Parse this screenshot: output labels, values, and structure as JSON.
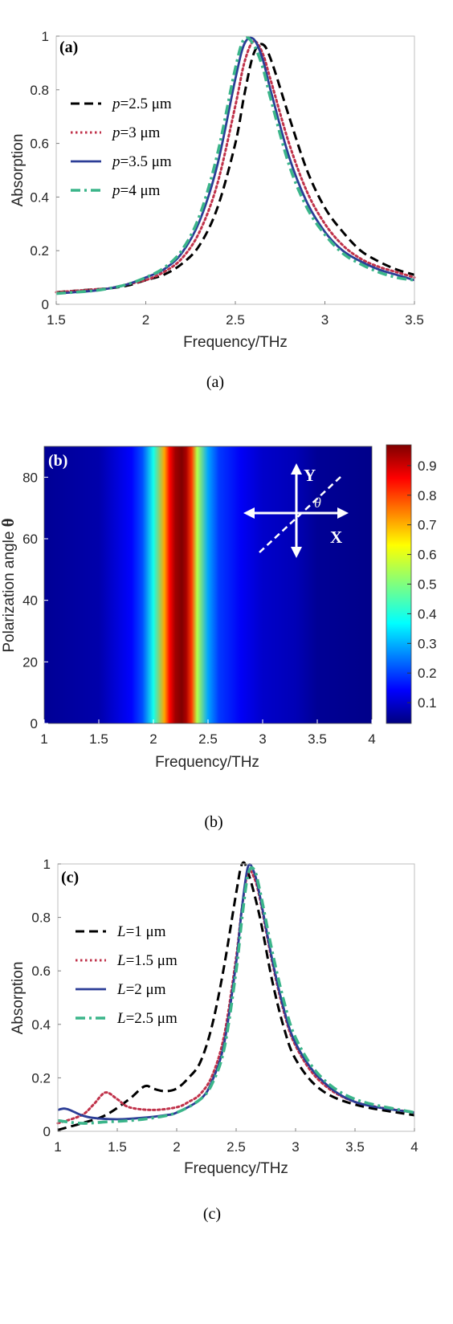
{
  "chart_data": [
    {
      "type": "line",
      "panel": "(a)",
      "caption": "(a)",
      "xlabel": "Frequency/THz",
      "ylabel": "Absorption",
      "xlim": [
        1.5,
        3.5
      ],
      "ylim": [
        0,
        1
      ],
      "xticks": [
        "1.5",
        "2",
        "2.5",
        "3",
        "3.5"
      ],
      "yticks": [
        "0",
        "0.2",
        "0.4",
        "0.6",
        "0.8",
        "1"
      ],
      "grid": false,
      "legend_position": "left",
      "series": [
        {
          "legend_prefix": "p",
          "legend_suffix": "=2.5 μm",
          "color": "#000000",
          "style": "dashed",
          "x": [
            1.5,
            1.6,
            1.7,
            1.8,
            1.9,
            2.0,
            2.1,
            2.2,
            2.3,
            2.4,
            2.5,
            2.55,
            2.6,
            2.65,
            2.7,
            2.8,
            2.9,
            3.0,
            3.1,
            3.2,
            3.3,
            3.4,
            3.5
          ],
          "y": [
            0.045,
            0.05,
            0.055,
            0.06,
            0.07,
            0.09,
            0.11,
            0.15,
            0.22,
            0.36,
            0.6,
            0.78,
            0.93,
            0.97,
            0.91,
            0.7,
            0.5,
            0.36,
            0.27,
            0.2,
            0.16,
            0.13,
            0.11
          ]
        },
        {
          "legend_prefix": "p",
          "legend_suffix": "=3 μm",
          "color": "#c0324a",
          "style": "dotted",
          "x": [
            1.5,
            1.6,
            1.7,
            1.8,
            1.9,
            2.0,
            2.1,
            2.2,
            2.3,
            2.4,
            2.5,
            2.55,
            2.6,
            2.65,
            2.7,
            2.8,
            2.9,
            3.0,
            3.1,
            3.2,
            3.3,
            3.4,
            3.5
          ],
          "y": [
            0.045,
            0.05,
            0.055,
            0.06,
            0.075,
            0.09,
            0.12,
            0.17,
            0.27,
            0.45,
            0.74,
            0.9,
            0.98,
            0.94,
            0.83,
            0.6,
            0.42,
            0.3,
            0.22,
            0.17,
            0.14,
            0.12,
            0.1
          ]
        },
        {
          "legend_prefix": "p",
          "legend_suffix": "=3.5 μm",
          "color": "#2b3d96",
          "style": "solid",
          "x": [
            1.5,
            1.6,
            1.7,
            1.8,
            1.9,
            2.0,
            2.1,
            2.2,
            2.3,
            2.4,
            2.5,
            2.55,
            2.6,
            2.65,
            2.7,
            2.8,
            2.9,
            3.0,
            3.1,
            3.2,
            3.3,
            3.4,
            3.5
          ],
          "y": [
            0.04,
            0.045,
            0.05,
            0.06,
            0.075,
            0.1,
            0.13,
            0.19,
            0.31,
            0.52,
            0.84,
            0.97,
            0.99,
            0.92,
            0.79,
            0.55,
            0.38,
            0.27,
            0.2,
            0.16,
            0.13,
            0.11,
            0.09
          ]
        },
        {
          "legend_prefix": "p",
          "legend_suffix": "=4 μm",
          "color": "#3bb58a",
          "style": "dashdot",
          "x": [
            1.5,
            1.6,
            1.7,
            1.8,
            1.9,
            2.0,
            2.1,
            2.2,
            2.3,
            2.4,
            2.5,
            2.55,
            2.6,
            2.65,
            2.7,
            2.8,
            2.9,
            3.0,
            3.1,
            3.2,
            3.3,
            3.4,
            3.5
          ],
          "y": [
            0.04,
            0.045,
            0.05,
            0.06,
            0.075,
            0.1,
            0.135,
            0.2,
            0.33,
            0.56,
            0.88,
            0.99,
            0.97,
            0.89,
            0.76,
            0.52,
            0.36,
            0.26,
            0.19,
            0.15,
            0.12,
            0.1,
            0.09
          ]
        }
      ]
    },
    {
      "type": "heatmap",
      "panel": "(b)",
      "caption": "(b)",
      "xlabel": "Frequency/THz",
      "ylabel_text": "Polarization angle ",
      "ylabel_symbol": "θ",
      "xlim": [
        1,
        4
      ],
      "ylim": [
        0,
        90
      ],
      "xticks": [
        "1",
        "1.5",
        "2",
        "2.5",
        "3",
        "3.5",
        "4"
      ],
      "yticks": [
        "0",
        "20",
        "40",
        "60",
        "80"
      ],
      "colorbar_range": [
        0.03,
        0.97
      ],
      "colorbar_ticks": [
        "0.1",
        "0.2",
        "0.3",
        "0.4",
        "0.5",
        "0.6",
        "0.7",
        "0.8",
        "0.9"
      ],
      "peak_frequency": 2.26,
      "value_along_frequency": {
        "x": [
          1.0,
          1.5,
          1.8,
          1.9,
          2.0,
          2.1,
          2.15,
          2.2,
          2.26,
          2.3,
          2.35,
          2.4,
          2.5,
          2.6,
          2.8,
          3.0,
          3.3,
          3.5,
          4.0
        ],
        "z": [
          0.05,
          0.07,
          0.15,
          0.22,
          0.4,
          0.7,
          0.85,
          0.94,
          0.97,
          0.93,
          0.8,
          0.55,
          0.3,
          0.2,
          0.14,
          0.1,
          0.08,
          0.05,
          0.04
        ]
      },
      "angle_dependence": "none",
      "inset_labels": {
        "y": "Y",
        "x": "X",
        "angle": "θ"
      }
    },
    {
      "type": "line",
      "panel": "(c)",
      "caption": "(c)",
      "xlabel": "Frequency/THz",
      "ylabel": "Absorption",
      "xlim": [
        1,
        4
      ],
      "ylim": [
        0,
        1
      ],
      "xticks": [
        "1",
        "1.5",
        "2",
        "2.5",
        "3",
        "3.5",
        "4"
      ],
      "yticks": [
        "0",
        "0.2",
        "0.4",
        "0.6",
        "0.8",
        "1"
      ],
      "grid": false,
      "legend_position": "left",
      "series": [
        {
          "legend_prefix": "L",
          "legend_suffix": "=1 μm",
          "color": "#000000",
          "style": "dashed",
          "x": [
            1.0,
            1.2,
            1.4,
            1.6,
            1.7,
            1.75,
            1.8,
            1.9,
            2.0,
            2.1,
            2.2,
            2.3,
            2.4,
            2.5,
            2.55,
            2.6,
            2.7,
            2.8,
            2.9,
            3.0,
            3.2,
            3.5,
            4.0
          ],
          "y": [
            0.005,
            0.03,
            0.06,
            0.12,
            0.16,
            0.17,
            0.16,
            0.15,
            0.16,
            0.2,
            0.26,
            0.4,
            0.62,
            0.89,
            1.0,
            0.97,
            0.8,
            0.57,
            0.39,
            0.27,
            0.16,
            0.1,
            0.06
          ]
        },
        {
          "legend_prefix": "L",
          "legend_suffix": "=1.5 μm",
          "color": "#c0324a",
          "style": "dotted",
          "x": [
            1.0,
            1.2,
            1.3,
            1.4,
            1.5,
            1.6,
            1.8,
            2.0,
            2.1,
            2.2,
            2.3,
            2.4,
            2.5,
            2.55,
            2.6,
            2.65,
            2.7,
            2.8,
            2.9,
            3.0,
            3.2,
            3.5,
            4.0
          ],
          "y": [
            0.03,
            0.06,
            0.1,
            0.145,
            0.12,
            0.09,
            0.08,
            0.09,
            0.11,
            0.14,
            0.21,
            0.36,
            0.65,
            0.84,
            0.97,
            0.95,
            0.87,
            0.64,
            0.45,
            0.32,
            0.19,
            0.11,
            0.07
          ]
        },
        {
          "legend_prefix": "L",
          "legend_suffix": "=2 μm",
          "color": "#2b3d96",
          "style": "solid",
          "x": [
            1.0,
            1.05,
            1.1,
            1.2,
            1.3,
            1.5,
            1.7,
            1.9,
            2.0,
            2.2,
            2.3,
            2.4,
            2.5,
            2.55,
            2.6,
            2.65,
            2.7,
            2.8,
            2.9,
            3.0,
            3.2,
            3.5,
            4.0
          ],
          "y": [
            0.08,
            0.085,
            0.08,
            0.06,
            0.05,
            0.045,
            0.05,
            0.06,
            0.07,
            0.12,
            0.19,
            0.33,
            0.63,
            0.84,
            0.99,
            0.97,
            0.88,
            0.65,
            0.46,
            0.33,
            0.2,
            0.11,
            0.07
          ]
        },
        {
          "legend_prefix": "L",
          "legend_suffix": "=2.5 μm",
          "color": "#3bb58a",
          "style": "dashdot",
          "x": [
            1.0,
            1.2,
            1.4,
            1.6,
            1.8,
            2.0,
            2.2,
            2.3,
            2.4,
            2.5,
            2.55,
            2.6,
            2.65,
            2.7,
            2.8,
            2.9,
            3.0,
            3.2,
            3.5,
            4.0
          ],
          "y": [
            0.04,
            0.03,
            0.035,
            0.04,
            0.05,
            0.07,
            0.12,
            0.18,
            0.31,
            0.6,
            0.8,
            0.96,
            0.98,
            0.9,
            0.68,
            0.49,
            0.35,
            0.21,
            0.12,
            0.07
          ]
        }
      ]
    }
  ]
}
